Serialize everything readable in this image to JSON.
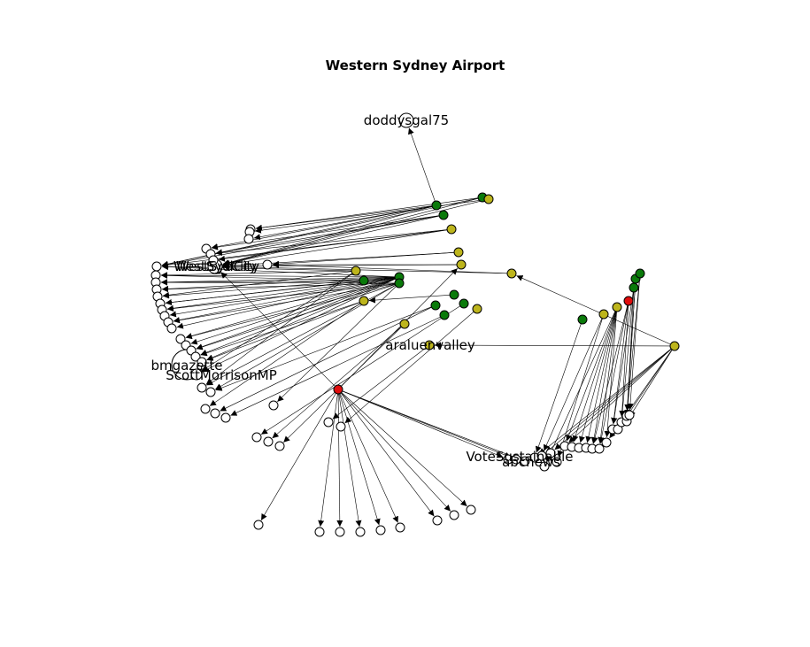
{
  "title": "Western Sydney Airport",
  "node_colors": {
    "white": "#ffffff",
    "green": "#0a7a0a",
    "olive": "#bdb51c",
    "red": "#e00d0d"
  },
  "node_labels": {
    "doddysgal75": "doddysgal75",
    "westsydcity": "WestSydCity",
    "westsydcity_overlap": "WestSydCity",
    "bmgazette": "bmgazette",
    "scottmorrisonmp": "ScottMorrisonMP",
    "araluenvalley": "araluenvalley",
    "votesustainable": "VoteSustainable",
    "abcnews": "abcnews"
  }
}
